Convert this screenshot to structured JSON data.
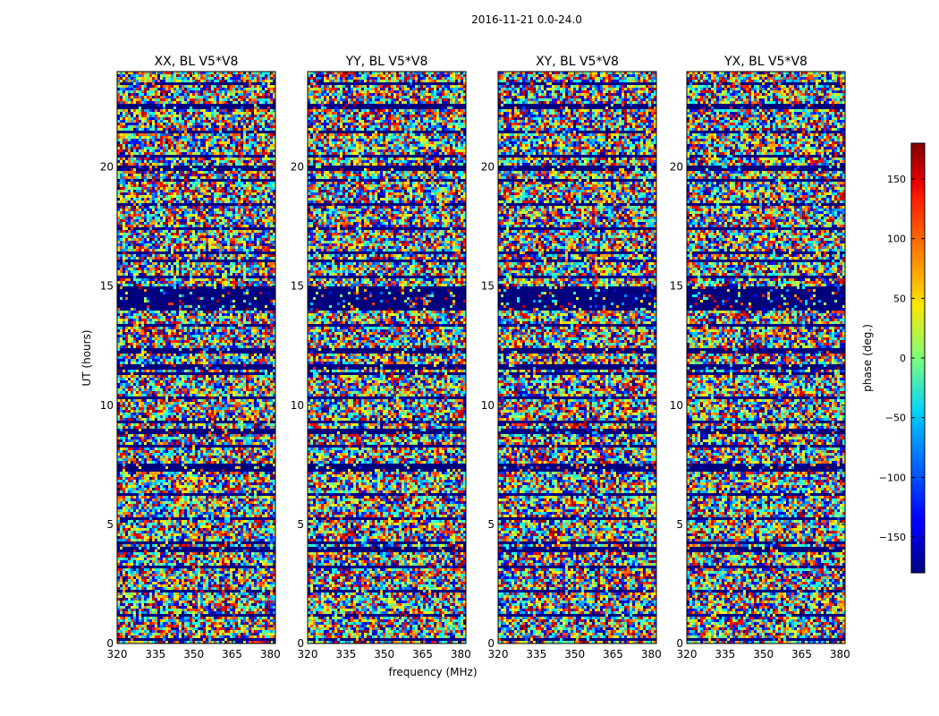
{
  "chart_data": {
    "type": "heatmap",
    "title": "2016-11-21 0.0-24.0",
    "xlabel": "frequency (MHz)",
    "ylabel": "UT (hours)",
    "xlim": [
      320,
      382
    ],
    "ylim": [
      0,
      24
    ],
    "xticks": [
      "320",
      "335",
      "350",
      "365",
      "380"
    ],
    "yticks": [
      "0",
      "5",
      "10",
      "15",
      "20"
    ],
    "colormap": "jet",
    "colorbar": {
      "label": "phase (deg.)",
      "range": [
        -180,
        180
      ],
      "ticks": [
        "−150",
        "−100",
        "−50",
        "0",
        "50",
        "100",
        "150"
      ]
    },
    "panels": [
      {
        "title": "XX, BL V5*V8"
      },
      {
        "title": "YY, BL V5*V8"
      },
      {
        "title": "XY, BL V5*V8"
      },
      {
        "title": "YX, BL V5*V8"
      }
    ]
  }
}
